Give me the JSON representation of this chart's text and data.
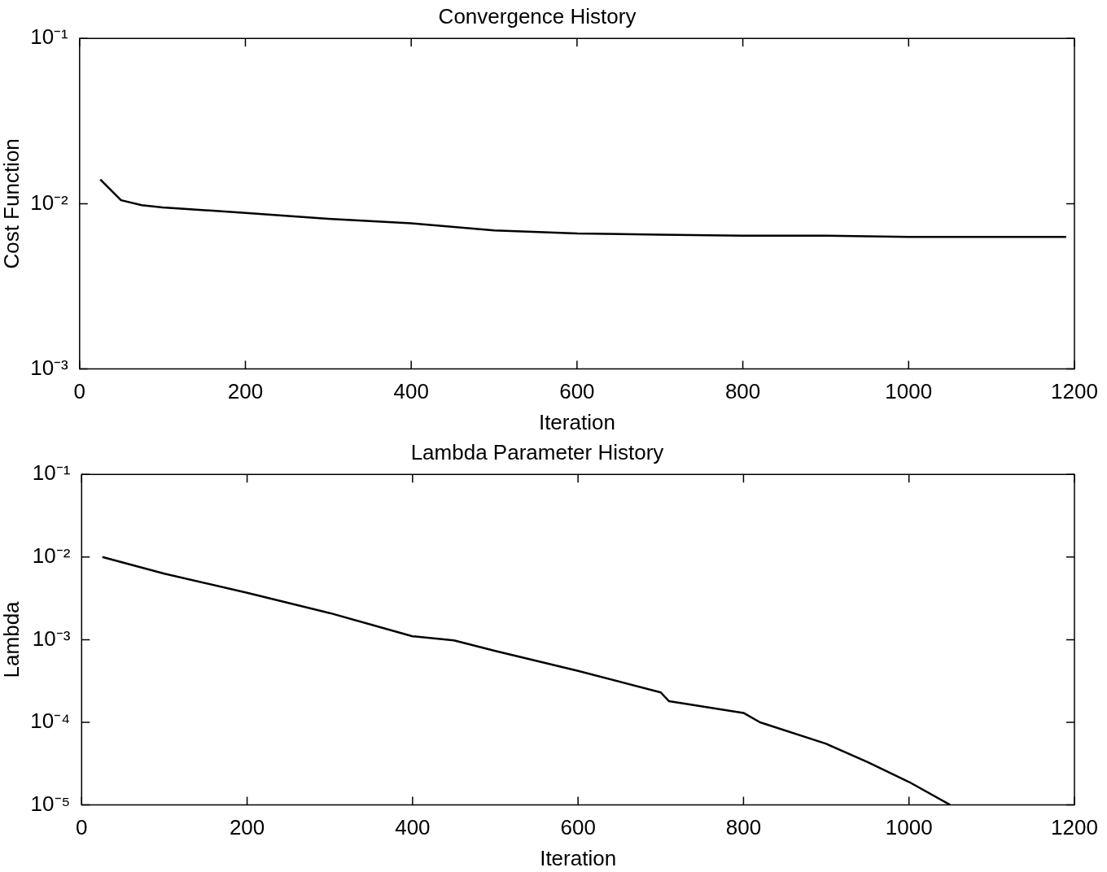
{
  "chart_data": [
    {
      "type": "line",
      "title": "Convergence History",
      "xlabel": "Iteration",
      "ylabel": "Cost Function",
      "log": "y",
      "x": [
        25,
        50,
        75,
        100,
        200,
        300,
        400,
        500,
        600,
        700,
        800,
        900,
        1000,
        1190
      ],
      "series": [
        {
          "color": "#000000",
          "values": [
            0.014,
            0.0105,
            0.0098,
            0.0095,
            0.0088,
            0.0081,
            0.0076,
            0.0069,
            0.0066,
            0.0065,
            0.0064,
            0.0064,
            0.0063,
            0.0063
          ]
        }
      ],
      "xlim": [
        0,
        1200
      ],
      "xticks": [
        0,
        200,
        400,
        600,
        800,
        1000,
        1200
      ],
      "ylim": [
        0.001,
        0.1
      ],
      "yticks": [
        {
          "value": 0.001,
          "label": "10⁻³"
        },
        {
          "value": 0.01,
          "label": "10⁻²"
        },
        {
          "value": 0.1,
          "label": "10⁻¹"
        }
      ]
    },
    {
      "type": "line",
      "title": "Lambda Parameter History",
      "xlabel": "Iteration",
      "ylabel": "Lambda",
      "log": "y",
      "x": [
        25,
        100,
        200,
        300,
        400,
        450,
        500,
        600,
        700,
        710,
        800,
        820,
        900,
        950,
        1000,
        1050
      ],
      "series": [
        {
          "color": "#000000",
          "values": [
            0.01,
            0.0063,
            0.0037,
            0.0021,
            0.0011,
            0.00098,
            0.00073,
            0.00042,
            0.00023,
            0.00018,
            0.00013,
            0.0001,
            5.5e-05,
            3.3e-05,
            1.9e-05,
            1e-05
          ]
        }
      ],
      "xlim": [
        0,
        1200
      ],
      "xticks": [
        0,
        200,
        400,
        600,
        800,
        1000,
        1200
      ],
      "ylim": [
        1e-05,
        0.1
      ],
      "yticks": [
        {
          "value": 1e-05,
          "label": "10⁻⁵"
        },
        {
          "value": 0.0001,
          "label": "10⁻⁴"
        },
        {
          "value": 0.001,
          "label": "10⁻³"
        },
        {
          "value": 0.01,
          "label": "10⁻²"
        },
        {
          "value": 0.1,
          "label": "10⁻¹"
        }
      ]
    }
  ]
}
